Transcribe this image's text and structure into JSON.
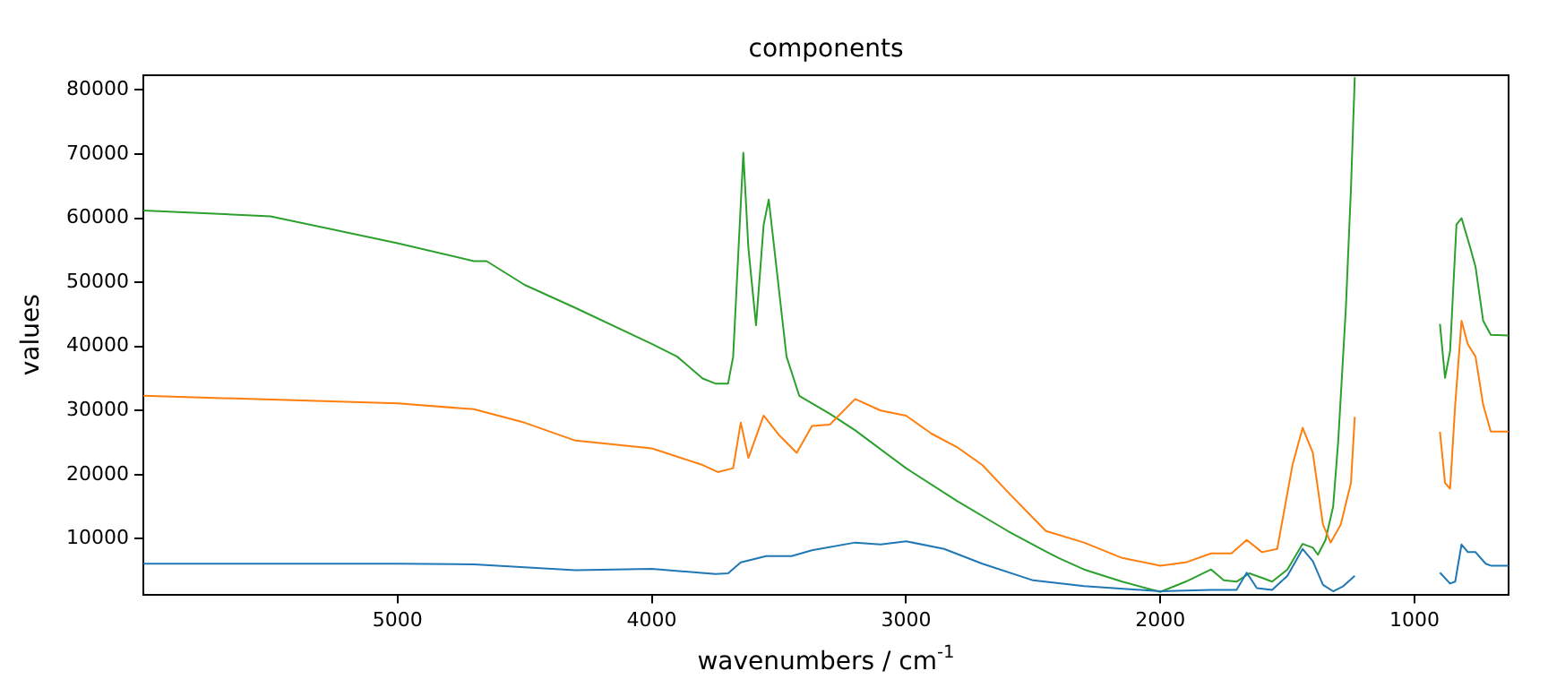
{
  "chart_data": {
    "type": "line",
    "title": "components",
    "xlabel": "wavenumbers / cm$^{-1}$",
    "ylabel": "values",
    "xlim": [
      6000,
      630
    ],
    "xticks": [
      5000,
      4000,
      3000,
      2000,
      1000
    ],
    "ylim": [
      1300,
      82300
    ],
    "yticks": [
      10000,
      20000,
      30000,
      40000,
      50000,
      60000,
      70000,
      80000
    ],
    "grid": false,
    "legend": false,
    "marker": "none",
    "line_style": "solid",
    "series": [
      {
        "color": "#1f77b4",
        "x": [
          6000,
          5000,
          4700,
          4300,
          4000,
          3750,
          3700,
          3650,
          3550,
          3450,
          3370,
          3200,
          3100,
          3000,
          2850,
          2700,
          2500,
          2300,
          2000,
          1800,
          1700,
          1660,
          1620,
          1560,
          1500,
          1440,
          1400,
          1360,
          1320,
          1280,
          1235,
          1100,
          900,
          860,
          840,
          815,
          790,
          760,
          720,
          700,
          630
        ],
        "values": [
          6100,
          6100,
          6000,
          5100,
          5300,
          4500,
          4600,
          6300,
          7300,
          7300,
          8200,
          9400,
          9100,
          9600,
          8400,
          6100,
          3500,
          2600,
          1800,
          2000,
          2000,
          4700,
          2300,
          2000,
          4200,
          8400,
          6500,
          2800,
          1800,
          2600,
          4200,
          null,
          4700,
          3000,
          3300,
          9100,
          7900,
          7900,
          6100,
          5800,
          5800
        ]
      },
      {
        "color": "#ff7f0e",
        "x": [
          6000,
          5000,
          4700,
          4500,
          4300,
          4000,
          3800,
          3740,
          3680,
          3650,
          3620,
          3560,
          3500,
          3430,
          3370,
          3300,
          3200,
          3100,
          3000,
          2900,
          2800,
          2700,
          2600,
          2450,
          2300,
          2150,
          2000,
          1900,
          1800,
          1720,
          1660,
          1600,
          1540,
          1480,
          1440,
          1400,
          1360,
          1330,
          1290,
          1250,
          1235,
          1100,
          900,
          880,
          860,
          840,
          815,
          790,
          760,
          730,
          700,
          630
        ],
        "values": [
          32300,
          31100,
          30200,
          28100,
          25300,
          24100,
          21500,
          20400,
          21000,
          28100,
          22600,
          29200,
          26200,
          23400,
          27600,
          27800,
          31800,
          30000,
          29200,
          26400,
          24300,
          21500,
          17300,
          11200,
          9400,
          7000,
          5800,
          6300,
          7700,
          7700,
          9800,
          7900,
          8400,
          21500,
          27300,
          23400,
          12200,
          9400,
          12200,
          18700,
          29000,
          null,
          26700,
          18700,
          17800,
          30900,
          44000,
          40300,
          38400,
          30900,
          26700,
          26700
        ]
      },
      {
        "color": "#2ca02c",
        "x": [
          6000,
          5500,
          5000,
          4700,
          4650,
          4500,
          4300,
          4000,
          3900,
          3800,
          3750,
          3700,
          3680,
          3640,
          3620,
          3590,
          3560,
          3540,
          3510,
          3470,
          3420,
          3300,
          3200,
          3000,
          2800,
          2600,
          2450,
          2400,
          2300,
          2150,
          2000,
          1900,
          1800,
          1750,
          1700,
          1650,
          1600,
          1560,
          1500,
          1440,
          1400,
          1380,
          1350,
          1320,
          1300,
          1270,
          1250,
          1235,
          1100,
          900,
          880,
          860,
          835,
          815,
          780,
          760,
          730,
          700,
          630
        ],
        "values": [
          61200,
          60300,
          56100,
          53300,
          53300,
          49600,
          46000,
          40400,
          38400,
          35000,
          34200,
          34200,
          38400,
          70200,
          55300,
          43300,
          59000,
          62900,
          52400,
          38400,
          32300,
          29500,
          26900,
          21000,
          15900,
          11200,
          8000,
          7000,
          5200,
          3300,
          1700,
          3300,
          5200,
          3500,
          3300,
          4600,
          3900,
          3300,
          5200,
          9200,
          8600,
          7500,
          9800,
          15000,
          25300,
          46000,
          64600,
          82000,
          null,
          43500,
          35100,
          39300,
          59000,
          60000,
          55300,
          52400,
          44000,
          41800,
          41700
        ]
      }
    ]
  }
}
